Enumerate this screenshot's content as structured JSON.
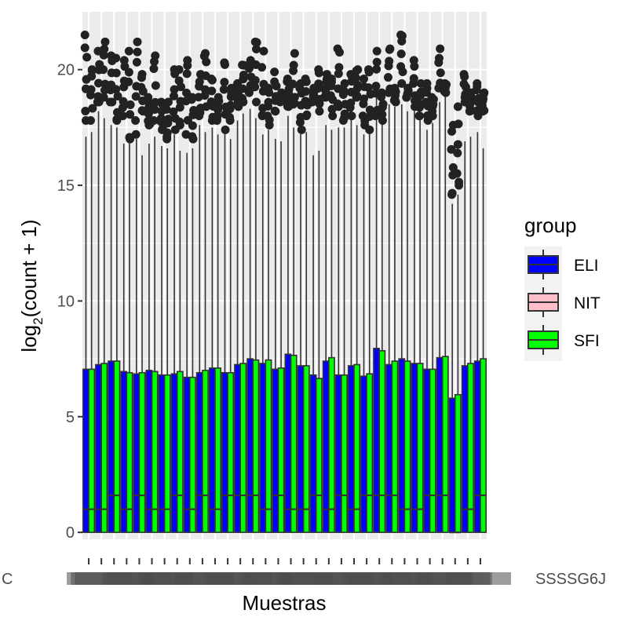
{
  "chart_data": {
    "type": "boxplot",
    "title": "",
    "xlabel": "Muestras",
    "ylabel_main": "log",
    "ylabel_sub": "2",
    "ylabel_rest": "(count + 1)",
    "ylim": [
      -0.3,
      22.5
    ],
    "yticks": [
      0,
      5,
      10,
      15,
      20
    ],
    "grid": true,
    "panel_background": "#ebebeb",
    "legend": {
      "title": "group",
      "position": "right",
      "entries": [
        {
          "name": "ELI",
          "color": "#0000ff"
        },
        {
          "name": "NIT",
          "color": "#ffc0cb"
        },
        {
          "name": "SFI",
          "color": "#00ff00"
        }
      ]
    },
    "x_tick_labels_visible_fragments": [
      "C",
      "SSSSG6J"
    ],
    "group_pattern": [
      "ELI",
      "SFI",
      "ELI",
      "SFI",
      "ELI",
      "SFI",
      "ELI",
      "SFI",
      "ELI",
      "SFI",
      "ELI",
      "SFI",
      "ELI",
      "SFI",
      "ELI",
      "SFI",
      "ELI",
      "SFI",
      "ELI",
      "SFI",
      "ELI",
      "SFI",
      "ELI",
      "SFI",
      "ELI",
      "SFI",
      "ELI",
      "SFI",
      "ELI",
      "SFI",
      "ELI",
      "SFI",
      "ELI",
      "SFI",
      "ELI",
      "SFI",
      "ELI",
      "SFI",
      "ELI",
      "SFI",
      "ELI",
      "SFI",
      "ELI",
      "SFI",
      "ELI",
      "SFI",
      "ELI",
      "SFI",
      "ELI",
      "SFI",
      "ELI",
      "SFI",
      "ELI",
      "SFI",
      "ELI",
      "SFI",
      "ELI",
      "SFI",
      "ELI",
      "SFI",
      "ELI",
      "SFI",
      "ELI",
      "SFI"
    ],
    "q3": [
      7.05,
      7.05,
      7.25,
      7.3,
      7.4,
      7.4,
      6.95,
      6.9,
      6.85,
      6.9,
      7.0,
      6.95,
      6.8,
      6.8,
      6.85,
      6.95,
      6.7,
      6.7,
      6.9,
      7.0,
      7.1,
      7.1,
      6.9,
      6.9,
      7.25,
      7.3,
      7.5,
      7.45,
      7.3,
      7.45,
      7.05,
      7.1,
      7.7,
      7.65,
      7.2,
      7.2,
      6.8,
      6.65,
      7.4,
      7.55,
      6.8,
      6.8,
      7.2,
      7.25,
      6.75,
      6.85,
      7.95,
      7.85,
      7.25,
      7.4,
      7.5,
      7.4,
      7.3,
      7.3,
      7.05,
      7.05,
      7.55,
      7.6,
      5.8,
      5.95,
      7.2,
      7.3,
      7.4,
      7.5
    ],
    "median": [
      1.0,
      1.0,
      1.0,
      1.0,
      1.6,
      1.6,
      1.0,
      1.0,
      1.6,
      1.6,
      1.0,
      1.0,
      1.0,
      1.0,
      1.6,
      1.6,
      1.0,
      1.0,
      1.6,
      1.6,
      1.0,
      1.0,
      1.6,
      1.6,
      1.6,
      1.6,
      1.6,
      1.6,
      1.0,
      1.0,
      1.6,
      1.6,
      1.0,
      1.0,
      1.0,
      1.0,
      1.6,
      1.6,
      1.0,
      1.0,
      1.6,
      1.6,
      1.0,
      1.0,
      1.6,
      1.6,
      1.6,
      1.6,
      1.6,
      1.6,
      1.0,
      1.0,
      1.0,
      1.0,
      1.6,
      1.6,
      1.6,
      1.6,
      0.0,
      0.0,
      1.0,
      1.0,
      1.6,
      1.6
    ],
    "whisker_max": [
      17.1,
      17.3,
      18.2,
      17.9,
      17.6,
      17.5,
      16.8,
      16.9,
      17.0,
      16.3,
      16.8,
      17.1,
      16.7,
      16.6,
      17.2,
      16.5,
      16.4,
      16.6,
      17.6,
      17.3,
      17.5,
      17.2,
      17.4,
      17.0,
      17.8,
      18.1,
      18.3,
      17.9,
      17.2,
      17.4,
      17.0,
      16.9,
      18.0,
      17.5,
      17.9,
      17.3,
      16.3,
      16.5,
      17.6,
      17.4,
      17.5,
      17.5,
      17.9,
      17.6,
      17.2,
      17.3,
      18.8,
      18.4,
      18.5,
      18.4,
      18.5,
      18.2,
      18.6,
      18.1,
      17.4,
      17.7,
      18.6,
      18.9,
      14.2,
      14.6,
      16.9,
      17.1,
      17.3,
      16.6
    ],
    "outlier_ranges": [
      [
        17.8,
        21.5
      ],
      [
        17.8,
        20.0
      ],
      [
        18.6,
        20.8
      ],
      [
        18.8,
        21.2
      ],
      [
        18.6,
        20.6
      ],
      [
        17.8,
        20.5
      ],
      [
        18.0,
        20.4
      ],
      [
        17.0,
        20.8
      ],
      [
        17.2,
        21.2
      ],
      [
        18.2,
        19.8
      ],
      [
        17.6,
        18.8
      ],
      [
        17.8,
        20.6
      ],
      [
        17.4,
        18.6
      ],
      [
        17.0,
        18.6
      ],
      [
        17.4,
        20.0
      ],
      [
        17.6,
        20.0
      ],
      [
        17.2,
        20.4
      ],
      [
        17.0,
        18.8
      ],
      [
        18.0,
        19.8
      ],
      [
        18.4,
        20.7
      ],
      [
        17.8,
        19.6
      ],
      [
        17.8,
        18.8
      ],
      [
        17.4,
        20.3
      ],
      [
        17.8,
        19.2
      ],
      [
        18.4,
        19.4
      ],
      [
        18.6,
        20.2
      ],
      [
        19.0,
        20.4
      ],
      [
        18.6,
        21.2
      ],
      [
        18.0,
        20.8
      ],
      [
        17.6,
        19.2
      ],
      [
        18.2,
        19.9
      ],
      [
        18.6,
        19.0
      ],
      [
        18.4,
        19.6
      ],
      [
        18.5,
        20.7
      ],
      [
        17.4,
        19.4
      ],
      [
        18.0,
        19.6
      ],
      [
        18.6,
        19.2
      ],
      [
        18.2,
        20.0
      ],
      [
        18.8,
        19.8
      ],
      [
        18.0,
        19.6
      ],
      [
        18.4,
        20.9
      ],
      [
        17.8,
        19.4
      ],
      [
        18.0,
        19.8
      ],
      [
        18.8,
        20.0
      ],
      [
        17.6,
        19.6
      ],
      [
        17.4,
        20.0
      ],
      [
        18.0,
        20.8
      ],
      [
        17.8,
        19.0
      ],
      [
        19.0,
        20.9
      ],
      [
        18.6,
        19.2
      ],
      [
        19.4,
        21.5
      ],
      [
        18.8,
        19.2
      ],
      [
        18.4,
        20.4
      ],
      [
        18.0,
        19.4
      ],
      [
        17.8,
        19.4
      ],
      [
        18.0,
        18.8
      ],
      [
        19.2,
        20.9
      ],
      [
        19.0,
        19.4
      ],
      [
        14.6,
        17.6
      ],
      [
        15.0,
        18.4
      ],
      [
        18.6,
        19.8
      ],
      [
        18.2,
        19.0
      ],
      [
        18.0,
        19.4
      ],
      [
        18.2,
        19.0
      ]
    ]
  }
}
